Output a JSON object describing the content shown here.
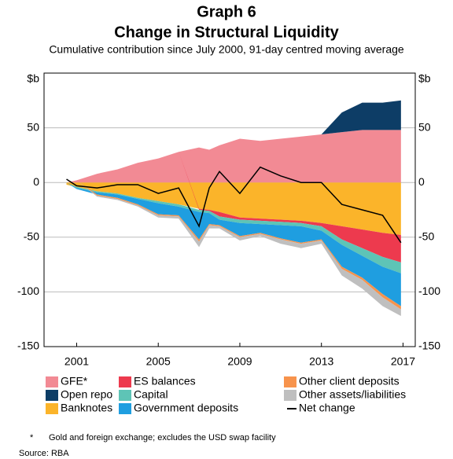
{
  "chart_data": {
    "type": "stacked_area",
    "title": "Graph 6",
    "subtitle": "Change in Structural Liquidity",
    "description": "Cumulative contribution since July 2000, 91-day centred moving average",
    "y_unit_left": "$b",
    "y_unit_right": "$b",
    "x": [
      2000.5,
      2001,
      2002,
      2003,
      2004,
      2005,
      2006,
      2007,
      2007.5,
      2008,
      2009,
      2010,
      2011,
      2012,
      2013,
      2014,
      2015,
      2016,
      2016.9
    ],
    "xlim": [
      1999.4,
      2017.6
    ],
    "xticks": [
      2001,
      2005,
      2009,
      2013,
      2017
    ],
    "ylim": [
      -150,
      100
    ],
    "yticks": [
      -150,
      -100,
      -50,
      0,
      50
    ],
    "grid": true,
    "series": [
      {
        "name": "GFE*",
        "color": "#f28a94",
        "values": [
          0,
          2,
          8,
          12,
          18,
          22,
          28,
          32,
          30,
          34,
          40,
          38,
          40,
          42,
          44,
          46,
          48,
          48,
          48
        ]
      },
      {
        "name": "Open repo",
        "color": "#0d3d66",
        "values": [
          0,
          0,
          0,
          0,
          0,
          0,
          0,
          0,
          0,
          0,
          0,
          0,
          0,
          0,
          0,
          18,
          25,
          25,
          27
        ]
      },
      {
        "name": "Banknotes",
        "color": "#fbb42a",
        "values": [
          -2,
          -4,
          -8,
          -10,
          -14,
          -17,
          -20,
          -24,
          -25,
          -27,
          -32,
          -33,
          -34,
          -35,
          -37,
          -40,
          -43,
          -46,
          -48
        ]
      },
      {
        "name": "ES balances",
        "color": "#ed3a4e",
        "values": [
          0,
          0,
          0,
          0,
          0,
          0,
          0,
          -1,
          -1,
          -4,
          -2,
          -2,
          -2,
          -2,
          -3,
          -12,
          -17,
          -22,
          -25
        ]
      },
      {
        "name": "Capital",
        "color": "#5ec4b6",
        "values": [
          0,
          -1,
          -1,
          -1,
          -1,
          -2,
          -2,
          -2,
          -2,
          -3,
          -3,
          -3,
          -3,
          -3,
          -4,
          -5,
          -7,
          -9,
          -10
        ]
      },
      {
        "name": "Government deposits",
        "color": "#1f9ee0",
        "values": [
          0,
          -1,
          -2,
          -3,
          -5,
          -10,
          -8,
          -25,
          -10,
          -5,
          -12,
          -8,
          -12,
          -15,
          -8,
          -20,
          -20,
          -25,
          -30
        ]
      },
      {
        "name": "Other client deposits",
        "color": "#f7934c",
        "values": [
          0,
          0,
          -1,
          -1,
          -1,
          -1,
          -1,
          -2,
          -1,
          -1,
          -1,
          -1,
          -1,
          -1,
          -1,
          -2,
          -2,
          -3,
          -3
        ]
      },
      {
        "name": "Other assets/liabilities",
        "color": "#bfbfbf",
        "values": [
          0,
          0,
          -1,
          -1,
          -1,
          -2,
          -2,
          -5,
          -3,
          -2,
          -3,
          -2,
          -4,
          -4,
          -3,
          -6,
          -8,
          -8,
          -6
        ]
      },
      {
        "name": "Net change",
        "color": "#000000",
        "type": "line",
        "values": [
          3,
          -3,
          -5,
          -2,
          -2,
          -10,
          -5,
          -40,
          -5,
          10,
          -10,
          14,
          6,
          0,
          0,
          -20,
          -25,
          -30,
          -55
        ]
      }
    ],
    "footnote_marker": "*",
    "footnote": "Gold and foreign exchange; excludes the USD swap facility",
    "source": "Source:   RBA"
  }
}
